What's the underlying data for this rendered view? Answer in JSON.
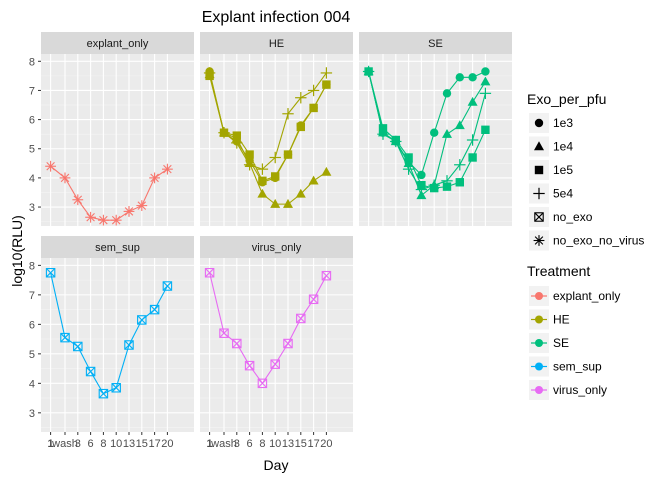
{
  "chart_data": {
    "type": "line",
    "title": "Explant infection 004",
    "xlabel": "Day",
    "ylabel": "log10(RLU)",
    "ylim": [
      2.35,
      8.25
    ],
    "y_ticks": [
      3,
      4,
      5,
      6,
      7,
      8
    ],
    "x_tick_labels": [
      "1",
      "wash",
      "3",
      "6",
      "8",
      "10",
      "13",
      "15",
      "17",
      "20"
    ],
    "grid": true,
    "legend_position": "right",
    "colors": {
      "explant_only": "#F8766D",
      "HE": "#A3A500",
      "SE": "#00BF7D",
      "sem_sup": "#00B0F6",
      "virus_only": "#E76BF3"
    },
    "shape_legend": {
      "title": "Exo_per_pfu",
      "items": [
        {
          "label": "1e3",
          "shape": "circle"
        },
        {
          "label": "1e4",
          "shape": "triangle"
        },
        {
          "label": "1e5",
          "shape": "square"
        },
        {
          "label": "5e4",
          "shape": "plus"
        },
        {
          "label": "no_exo",
          "shape": "boxed-x"
        },
        {
          "label": "no_exo_no_virus",
          "shape": "asterisk"
        }
      ]
    },
    "color_legend": {
      "title": "Treatment",
      "items": [
        "explant_only",
        "HE",
        "SE",
        "sem_sup",
        "virus_only"
      ]
    },
    "panels": [
      {
        "name": "explant_only",
        "series": [
          {
            "treatment": "explant_only",
            "exo": "no_exo_no_virus",
            "shape": "asterisk",
            "y": [
              4.4,
              4.0,
              3.25,
              2.65,
              2.55,
              2.55,
              2.85,
              3.05,
              4.0,
              4.3
            ]
          }
        ]
      },
      {
        "name": "HE",
        "series": [
          {
            "treatment": "HE",
            "exo": "1e3",
            "shape": "circle",
            "y": [
              7.65,
              5.55,
              5.25,
              4.6,
              3.85,
              4.0,
              4.8,
              5.8,
              6.4,
              7.2
            ]
          },
          {
            "treatment": "HE",
            "exo": "1e4",
            "shape": "triangle",
            "y": [
              7.55,
              5.55,
              5.35,
              4.5,
              3.45,
              3.1,
              3.1,
              3.45,
              3.9,
              4.2
            ]
          },
          {
            "treatment": "HE",
            "exo": "1e5",
            "shape": "square",
            "y": [
              7.5,
              5.55,
              5.45,
              4.8,
              3.9,
              4.05,
              4.8,
              5.75,
              6.4,
              7.2
            ]
          },
          {
            "treatment": "HE",
            "exo": "5e4",
            "shape": "plus",
            "y": [
              7.6,
              5.55,
              5.2,
              4.45,
              4.3,
              4.7,
              6.2,
              6.75,
              7.0,
              7.6
            ]
          }
        ]
      },
      {
        "name": "SE",
        "series": [
          {
            "treatment": "SE",
            "exo": "1e3",
            "shape": "circle",
            "y": [
              7.65,
              5.55,
              5.25,
              4.55,
              4.1,
              5.55,
              6.9,
              7.45,
              7.45,
              7.65
            ]
          },
          {
            "treatment": "SE",
            "exo": "1e4",
            "shape": "triangle",
            "y": [
              7.65,
              5.55,
              5.25,
              4.5,
              3.4,
              3.75,
              5.5,
              5.8,
              6.6,
              7.3
            ]
          },
          {
            "treatment": "SE",
            "exo": "1e5",
            "shape": "square",
            "y": [
              7.65,
              5.7,
              5.3,
              4.7,
              3.75,
              3.65,
              3.7,
              3.85,
              4.7,
              5.65
            ]
          },
          {
            "treatment": "SE",
            "exo": "5e4",
            "shape": "plus",
            "y": [
              7.65,
              5.5,
              5.25,
              4.3,
              3.6,
              3.75,
              3.9,
              4.45,
              5.3,
              6.9
            ]
          }
        ]
      },
      {
        "name": "sem_sup",
        "series": [
          {
            "treatment": "sem_sup",
            "exo": "no_exo",
            "shape": "boxed-x",
            "y": [
              7.75,
              5.55,
              5.25,
              4.4,
              3.65,
              3.85,
              5.3,
              6.15,
              6.5,
              7.3
            ]
          }
        ]
      },
      {
        "name": "virus_only",
        "series": [
          {
            "treatment": "virus_only",
            "exo": "no_exo",
            "shape": "boxed-x",
            "y": [
              7.75,
              5.7,
              5.35,
              4.6,
              4.0,
              4.65,
              5.35,
              6.2,
              6.85,
              7.65
            ]
          }
        ]
      }
    ]
  }
}
